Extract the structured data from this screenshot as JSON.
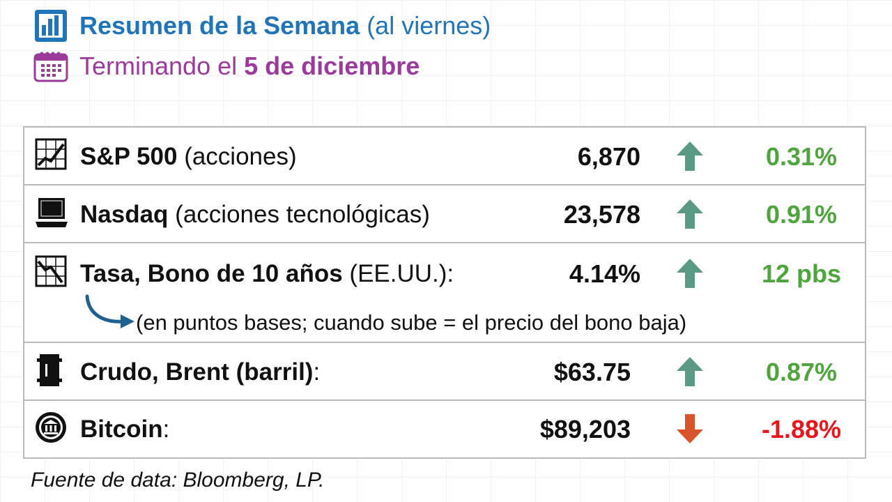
{
  "header": {
    "title_bold": "Resumen de la Semana",
    "title_rest": "(al viernes)",
    "subtitle_prefix": "Terminando el",
    "subtitle_date": "5 de diciembre",
    "title_color": "#1f75b8",
    "subtitle_color": "#9b3a9b"
  },
  "rows": [
    {
      "icon": "chart-icon",
      "name": "S&P 500",
      "qualifier": "(acciones)",
      "suffix": "",
      "value": "6,870",
      "direction": "up",
      "change": "0.31%"
    },
    {
      "icon": "laptop-icon",
      "name": "Nasdaq",
      "qualifier": "(acciones tecnológicas)",
      "suffix": "",
      "value": "23,578",
      "direction": "up",
      "change": "0.91%"
    },
    {
      "icon": "declining-chart-icon",
      "name": "Tasa, Bono de 10 años",
      "qualifier": "(EE.UU.)",
      "suffix": ":",
      "value": "4.14%",
      "direction": "up",
      "change": "12 pbs",
      "note": "(en puntos bases; cuando sube = el precio del bono baja)"
    },
    {
      "icon": "oil-barrel-icon",
      "name": "Crudo, Brent (barril)",
      "qualifier": "",
      "suffix": ":",
      "value": "$63.75",
      "direction": "up",
      "change": "0.87%"
    },
    {
      "icon": "bitcoin-coin-icon",
      "name": "Bitcoin",
      "qualifier": "",
      "suffix": ":",
      "value": "$89,203",
      "direction": "down",
      "change": "-1.88%"
    }
  ],
  "colors": {
    "up_arrow": "#5a9a84",
    "down_arrow": "#d9532b",
    "positive": "#4ea53d",
    "negative": "#e8161b",
    "note_arrow": "#1e6090"
  },
  "source": "Fuente de data: Bloomberg, LP."
}
